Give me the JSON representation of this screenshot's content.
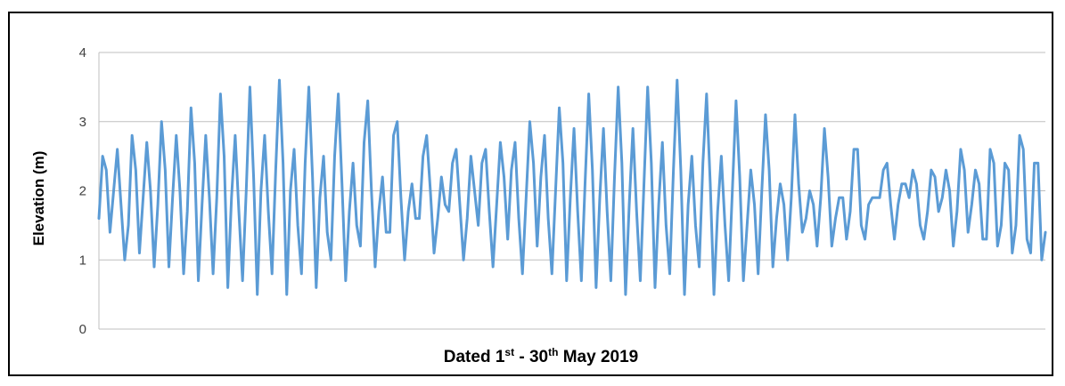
{
  "chart_data": {
    "type": "line",
    "xlabel_parts": [
      "Dated 1",
      "st",
      " - 30",
      "th",
      " May 2019"
    ],
    "ylabel": "Elevation (m)",
    "ylim": [
      0,
      4
    ],
    "yticks": [
      0,
      1,
      2,
      3,
      4
    ],
    "grid": true,
    "line_color": "#5B9BD5",
    "series": [
      {
        "values": [
          1.6,
          2.5,
          2.3,
          1.4,
          2.0,
          2.6,
          1.8,
          1.0,
          1.5,
          2.8,
          2.3,
          1.1,
          1.9,
          2.7,
          2.0,
          0.9,
          1.8,
          3.0,
          2.3,
          0.9,
          1.9,
          2.8,
          2.0,
          0.8,
          1.7,
          3.2,
          2.4,
          0.7,
          1.8,
          2.8,
          1.9,
          0.8,
          1.9,
          3.4,
          2.5,
          0.6,
          1.9,
          2.8,
          1.7,
          0.7,
          2.0,
          3.5,
          2.2,
          0.5,
          2.0,
          2.8,
          1.7,
          0.8,
          2.3,
          3.6,
          2.4,
          0.5,
          2.0,
          2.6,
          1.5,
          0.8,
          2.4,
          3.5,
          2.2,
          0.6,
          1.9,
          2.5,
          1.4,
          1.0,
          2.5,
          3.4,
          2.1,
          0.7,
          1.7,
          2.4,
          1.5,
          1.2,
          2.7,
          3.3,
          2.0,
          0.9,
          1.7,
          2.2,
          1.4,
          1.4,
          2.8,
          3.0,
          1.9,
          1.0,
          1.7,
          2.1,
          1.6,
          1.6,
          2.5,
          2.8,
          2.0,
          1.1,
          1.6,
          2.2,
          1.8,
          1.7,
          2.4,
          2.6,
          1.8,
          1.0,
          1.6,
          2.5,
          2.0,
          1.5,
          2.4,
          2.6,
          1.7,
          0.9,
          1.8,
          2.7,
          2.2,
          1.3,
          2.3,
          2.7,
          1.6,
          0.8,
          1.9,
          3.0,
          2.4,
          1.2,
          2.2,
          2.8,
          1.6,
          0.8,
          2.0,
          3.2,
          2.4,
          0.7,
          1.9,
          2.9,
          1.7,
          0.7,
          2.1,
          3.4,
          2.3,
          0.6,
          1.9,
          2.9,
          1.7,
          0.7,
          2.2,
          3.5,
          2.4,
          0.5,
          1.8,
          2.9,
          1.7,
          0.7,
          2.1,
          3.5,
          2.4,
          0.6,
          1.8,
          2.7,
          1.5,
          0.8,
          2.3,
          3.6,
          2.3,
          0.5,
          1.8,
          2.5,
          1.5,
          0.9,
          2.4,
          3.4,
          2.1,
          0.5,
          1.7,
          2.5,
          1.5,
          0.7,
          2.0,
          3.3,
          2.2,
          0.7,
          1.5,
          2.3,
          1.8,
          0.8,
          2.0,
          3.1,
          2.3,
          0.9,
          1.6,
          2.1,
          1.8,
          1.0,
          1.9,
          3.1,
          2.1,
          1.4,
          1.6,
          2.0,
          1.8,
          1.2,
          1.9,
          2.9,
          2.2,
          1.2,
          1.6,
          1.9,
          1.9,
          1.3,
          1.7,
          2.6,
          2.6,
          1.5,
          1.3,
          1.8,
          1.9,
          1.9,
          1.9,
          2.3,
          2.4,
          1.8,
          1.3,
          1.8,
          2.1,
          2.1,
          1.9,
          2.3,
          2.1,
          1.5,
          1.3,
          1.7,
          2.3,
          2.2,
          1.7,
          1.9,
          2.3,
          2.0,
          1.2,
          1.7,
          2.6,
          2.3,
          1.4,
          1.8,
          2.3,
          2.1,
          1.3,
          1.3,
          2.6,
          2.4,
          1.2,
          1.5,
          2.4,
          2.3,
          1.1,
          1.5,
          2.8,
          2.6,
          1.3,
          1.1,
          2.4,
          2.4,
          1.0,
          1.4
        ]
      }
    ]
  }
}
